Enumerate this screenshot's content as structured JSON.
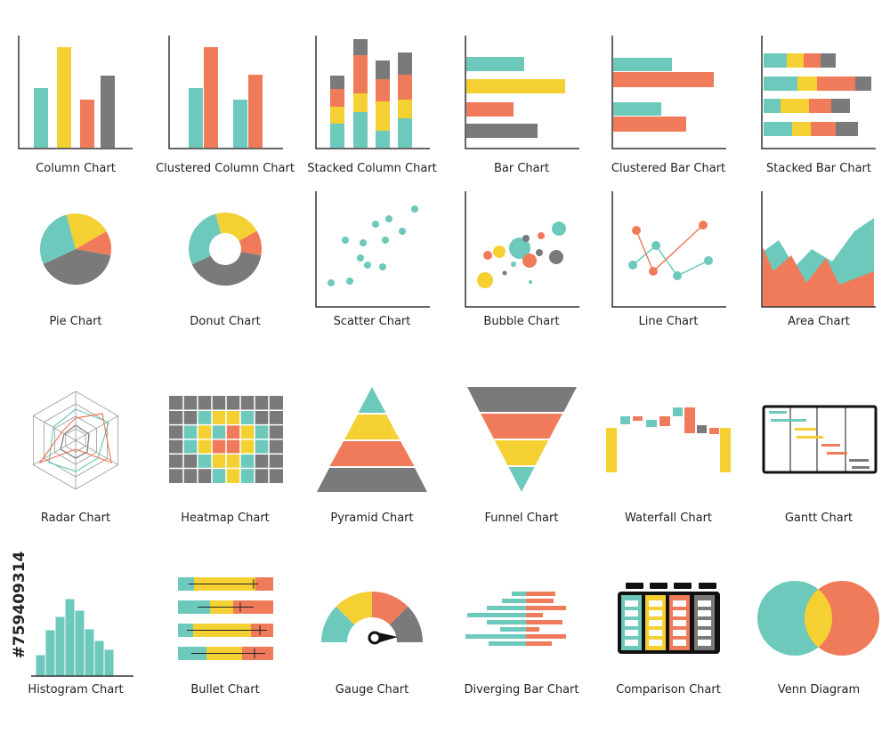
{
  "labels": [
    "Column Chart",
    "Clustered Column Chart",
    "Stacked Column Chart",
    "Bar Chart",
    "Clustered Bar Chart",
    "Stacked Bar Chart",
    "Pie Chart",
    "Donut Chart",
    "Scatter Chart",
    "Bubble Chart",
    "Line Chart",
    "Area Chart",
    "Radar Chart",
    "Heatmap Chart",
    "Pyramid Chart",
    "Funnel Chart",
    "Waterfall Chart",
    "Gantt Chart",
    "Histogram Chart",
    "Bullet Chart",
    "Gauge Chart",
    "Diverging Bar Chart",
    "Comparison Chart",
    "Venn Diagram"
  ],
  "stock_id": "#759409314"
}
